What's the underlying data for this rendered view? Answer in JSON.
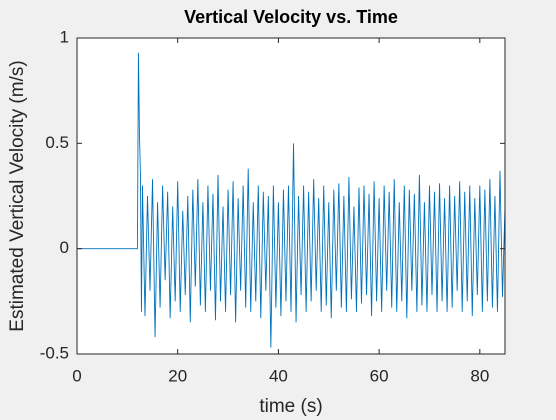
{
  "chart_data": {
    "type": "line",
    "title": "Vertical Velocity vs. Time",
    "xlabel": "time (s)",
    "ylabel": "Estimated Vertical Velocity (m/s)",
    "x": [
      0,
      12,
      12.2,
      12.4,
      12.6,
      12.8,
      13,
      13.5,
      14,
      14.5,
      15,
      15.5,
      16,
      16.5,
      17,
      17.5,
      18,
      18.5,
      19,
      19.5,
      20,
      20.5,
      21,
      21.5,
      22,
      22.5,
      23,
      23.5,
      24,
      24.5,
      25,
      25.5,
      26,
      26.5,
      27,
      27.5,
      28,
      28.5,
      29,
      29.5,
      30,
      30.5,
      31,
      31.5,
      32,
      32.5,
      33,
      33.5,
      34,
      34.5,
      35,
      35.5,
      36,
      36.5,
      37,
      37.5,
      38,
      38.5,
      39,
      39.5,
      40,
      40.5,
      41,
      41.5,
      42,
      42.5,
      43,
      43.5,
      44,
      44.5,
      45,
      45.5,
      46,
      46.5,
      47,
      47.5,
      48,
      48.5,
      49,
      49.5,
      50,
      50.5,
      51,
      51.5,
      52,
      52.5,
      53,
      53.5,
      54,
      54.5,
      55,
      55.5,
      56,
      56.5,
      57,
      57.5,
      58,
      58.5,
      59,
      59.5,
      60,
      60.5,
      61,
      61.5,
      62,
      62.5,
      63,
      63.5,
      64,
      64.5,
      65,
      65.5,
      66,
      66.5,
      67,
      67.5,
      68,
      68.5,
      69,
      69.5,
      70,
      70.5,
      71,
      71.5,
      72,
      72.5,
      73,
      73.5,
      74,
      74.5,
      75,
      75.5,
      76,
      76.5,
      77,
      77.5,
      78,
      78.5,
      79,
      79.5,
      80,
      80.5,
      81,
      81.5,
      82,
      82.5,
      83,
      83.5,
      84,
      84.5,
      85
    ],
    "series": [
      {
        "color": "#0072bd",
        "values": [
          0,
          0,
          0.93,
          0.55,
          0.35,
          -0.3,
          0.3,
          -0.32,
          0.25,
          -0.2,
          0.33,
          -0.42,
          0.22,
          -0.28,
          0.3,
          -0.15,
          0.27,
          -0.33,
          0.2,
          -0.25,
          0.32,
          -0.3,
          0.18,
          -0.22,
          0.25,
          -0.35,
          0.28,
          -0.18,
          0.33,
          -0.27,
          0.22,
          -0.3,
          0.3,
          -0.2,
          0.26,
          -0.34,
          0.35,
          -0.25,
          0.2,
          -0.3,
          0.28,
          -0.22,
          0.32,
          -0.35,
          0.24,
          -0.2,
          0.3,
          -0.28,
          0.38,
          -0.3,
          0.22,
          -0.25,
          0.3,
          -0.33,
          0.27,
          -0.2,
          0.25,
          -0.47,
          0.3,
          -0.28,
          0.22,
          -0.32,
          0.28,
          -0.25,
          0.3,
          -0.3,
          0.5,
          -0.35,
          0.25,
          -0.22,
          0.3,
          -0.3,
          0.27,
          -0.25,
          0.33,
          -0.2,
          0.24,
          -0.3,
          0.3,
          -0.27,
          0.22,
          -0.33,
          0.28,
          -0.2,
          0.31,
          -0.28,
          0.25,
          -0.3,
          0.34,
          -0.24,
          0.2,
          -0.3,
          0.29,
          -0.26,
          0.3,
          -0.22,
          0.26,
          -0.32,
          0.32,
          -0.25,
          0.24,
          -0.3,
          0.3,
          -0.2,
          0.27,
          -0.28,
          0.33,
          -0.3,
          0.22,
          -0.25,
          0.3,
          -0.33,
          0.28,
          -0.2,
          0.26,
          -0.3,
          0.35,
          -0.27,
          0.22,
          -0.3,
          0.3,
          -0.22,
          0.27,
          -0.3,
          0.31,
          -0.25,
          0.24,
          -0.3,
          0.3,
          -0.28,
          0.25,
          -0.2,
          0.32,
          -0.3,
          0.27,
          -0.25,
          0.3,
          -0.32,
          0.24,
          -0.22,
          0.3,
          -0.3,
          0.28,
          -0.25,
          0.33,
          -0.28,
          0.25,
          -0.3,
          0.37,
          -0.23,
          0.2
        ]
      }
    ],
    "xlim": [
      0,
      85
    ],
    "xticks": [
      0,
      20,
      40,
      60,
      80
    ],
    "ylim": [
      -0.5,
      1
    ],
    "yticks": [
      -0.5,
      0,
      0.5,
      1
    ]
  }
}
